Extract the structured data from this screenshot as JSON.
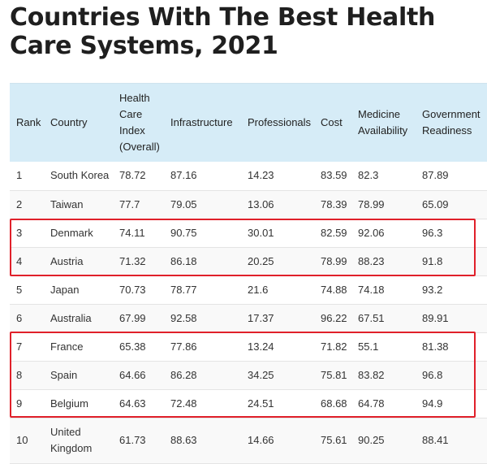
{
  "title": "Countries With The Best Health Care Systems, 2021",
  "table": {
    "headers": [
      [
        "Rank"
      ],
      [
        "Country"
      ],
      [
        "Health",
        "Care",
        "Index",
        "(Overall)"
      ],
      [
        "Infrastructure"
      ],
      [
        "Professionals"
      ],
      [
        "Cost"
      ],
      [
        "Medicine",
        "Availability"
      ],
      [
        "Government",
        "Readiness"
      ]
    ],
    "rows": [
      [
        "1",
        "South Korea",
        "78.72",
        "87.16",
        "14.23",
        "83.59",
        "82.3",
        "87.89"
      ],
      [
        "2",
        "Taiwan",
        "77.7",
        "79.05",
        "13.06",
        "78.39",
        "78.99",
        "65.09"
      ],
      [
        "3",
        "Denmark",
        "74.11",
        "90.75",
        "30.01",
        "82.59",
        "92.06",
        "96.3"
      ],
      [
        "4",
        "Austria",
        "71.32",
        "86.18",
        "20.25",
        "78.99",
        "88.23",
        "91.8"
      ],
      [
        "5",
        "Japan",
        "70.73",
        "78.77",
        "21.6",
        "74.88",
        "74.18",
        "93.2"
      ],
      [
        "6",
        "Australia",
        "67.99",
        "92.58",
        "17.37",
        "96.22",
        "67.51",
        "89.91"
      ],
      [
        "7",
        "France",
        "65.38",
        "77.86",
        "13.24",
        "71.82",
        "55.1",
        "81.38"
      ],
      [
        "8",
        "Spain",
        "64.66",
        "86.28",
        "34.25",
        "75.81",
        "83.82",
        "96.8"
      ],
      [
        "9",
        "Belgium",
        "64.63",
        "72.48",
        "24.51",
        "68.68",
        "64.78",
        "94.9"
      ],
      [
        "10",
        "United Kingdom",
        "61.73",
        "88.63",
        "14.66",
        "75.61",
        "90.25",
        "88.41"
      ]
    ]
  },
  "highlight_color": "#e0202a",
  "header_background": "#d6ecf7"
}
